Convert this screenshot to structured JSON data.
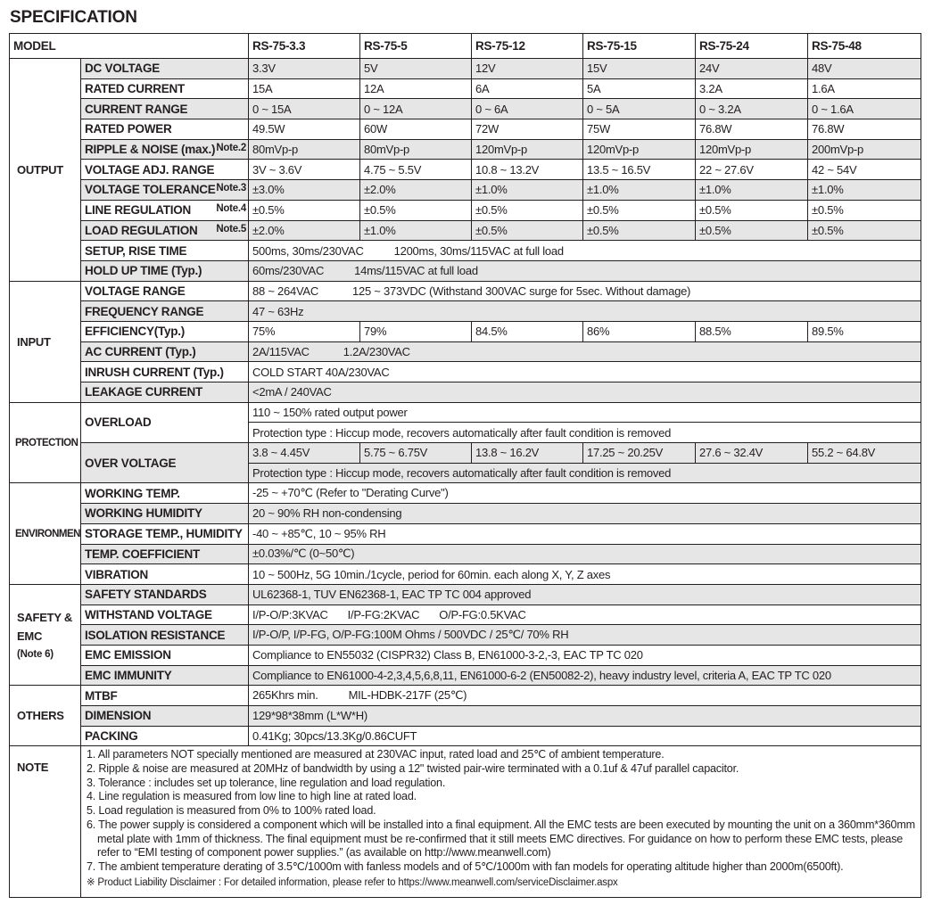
{
  "title": "SPECIFICATION",
  "model_label": "MODEL",
  "models": [
    "RS-75-3.3",
    "RS-75-5",
    "RS-75-12",
    "RS-75-15",
    "RS-75-24",
    "RS-75-48"
  ],
  "sections": [
    {
      "name": "OUTPUT",
      "rows": [
        {
          "label": "DC VOLTAGE",
          "values": [
            "3.3V",
            "5V",
            "12V",
            "15V",
            "24V",
            "48V"
          ]
        },
        {
          "label": "RATED CURRENT",
          "values": [
            "15A",
            "12A",
            "6A",
            "5A",
            "3.2A",
            "1.6A"
          ]
        },
        {
          "label": "CURRENT RANGE",
          "values": [
            "0 ~ 15A",
            "0 ~ 12A",
            "0 ~ 6A",
            "0 ~ 5A",
            "0 ~ 3.2A",
            "0 ~ 1.6A"
          ]
        },
        {
          "label": "RATED POWER",
          "values": [
            "49.5W",
            "60W",
            "72W",
            "75W",
            "76.8W",
            "76.8W"
          ]
        },
        {
          "label": "RIPPLE & NOISE (max.)",
          "note": "Note.2",
          "values": [
            "80mVp-p",
            "80mVp-p",
            "120mVp-p",
            "120mVp-p",
            "120mVp-p",
            "200mVp-p"
          ]
        },
        {
          "label": "VOLTAGE ADJ. RANGE",
          "values": [
            "3V ~ 3.6V",
            "4.75 ~ 5.5V",
            "10.8 ~ 13.2V",
            "13.5 ~ 16.5V",
            "22 ~ 27.6V",
            "42 ~ 54V"
          ]
        },
        {
          "label": "VOLTAGE TOLERANCE",
          "note": "Note.3",
          "values": [
            "±3.0%",
            "±2.0%",
            "±1.0%",
            "±1.0%",
            "±1.0%",
            "±1.0%"
          ]
        },
        {
          "label": "LINE REGULATION",
          "note": "Note.4",
          "values": [
            "±0.5%",
            "±0.5%",
            "±0.5%",
            "±0.5%",
            "±0.5%",
            "±0.5%"
          ]
        },
        {
          "label": "LOAD REGULATION",
          "note": "Note.5",
          "values": [
            "±2.0%",
            "±1.0%",
            "±0.5%",
            "±0.5%",
            "±0.5%",
            "±0.5%"
          ]
        },
        {
          "label": "SETUP, RISE TIME",
          "parts": [
            "500ms, 30ms/230VAC",
            "1200ms, 30ms/115VAC at full load"
          ]
        },
        {
          "label": "HOLD UP TIME (Typ.)",
          "parts": [
            "60ms/230VAC",
            "14ms/115VAC at full load"
          ]
        }
      ]
    },
    {
      "name": "INPUT",
      "rows": [
        {
          "label": "VOLTAGE RANGE",
          "parts": [
            "88 ~ 264VAC",
            "125 ~ 373VDC (Withstand 300VAC surge for 5sec. Without damage)"
          ]
        },
        {
          "label": "FREQUENCY RANGE",
          "parts": [
            "47 ~ 63Hz"
          ]
        },
        {
          "label": "EFFICIENCY(Typ.)",
          "values": [
            "75%",
            "79%",
            "84.5%",
            "86%",
            "88.5%",
            "89.5%"
          ]
        },
        {
          "label": "AC CURRENT (Typ.)",
          "parts": [
            "2A/115VAC",
            "1.2A/230VAC"
          ]
        },
        {
          "label": "INRUSH CURRENT (Typ.)",
          "parts": [
            "COLD START 40A/230VAC"
          ]
        },
        {
          "label": "LEAKAGE CURRENT",
          "parts": [
            "<2mA / 240VAC"
          ]
        }
      ]
    },
    {
      "name": "PROTECTION",
      "rows": [
        {
          "label": "OVERLOAD",
          "sub": [
            {
              "parts": [
                "110 ~ 150% rated output power"
              ]
            },
            {
              "parts": [
                "Protection type : Hiccup mode, recovers automatically after fault condition is removed"
              ]
            }
          ]
        },
        {
          "label": "OVER VOLTAGE",
          "sub": [
            {
              "values": [
                "3.8 ~ 4.45V",
                "5.75 ~ 6.75V",
                "13.8 ~ 16.2V",
                "17.25 ~ 20.25V",
                "27.6 ~ 32.4V",
                "55.2 ~ 64.8V"
              ]
            },
            {
              "parts": [
                "Protection type : Hiccup mode, recovers automatically after fault condition is removed"
              ]
            }
          ]
        }
      ]
    },
    {
      "name": "ENVIRONMENT",
      "rows": [
        {
          "label": "WORKING TEMP.",
          "parts": [
            "-25 ~ +70℃ (Refer to \"Derating Curve\")"
          ]
        },
        {
          "label": "WORKING HUMIDITY",
          "parts": [
            "20 ~ 90% RH non-condensing"
          ]
        },
        {
          "label": "STORAGE TEMP., HUMIDITY",
          "parts": [
            "-40 ~ +85℃, 10 ~ 95% RH"
          ]
        },
        {
          "label": "TEMP. COEFFICIENT",
          "parts": [
            "±0.03%/℃ (0~50℃)"
          ]
        },
        {
          "label": "VIBRATION",
          "parts": [
            "10 ~ 500Hz, 5G 10min./1cycle, period for 60min. each along X, Y, Z axes"
          ]
        }
      ]
    },
    {
      "name": "SAFETY &",
      "name2": "EMC",
      "name3": "(Note 6)",
      "rows": [
        {
          "label": "SAFETY STANDARDS",
          "parts": [
            "UL62368-1, TUV EN62368-1, EAC TP TC 004 approved"
          ]
        },
        {
          "label": "WITHSTAND VOLTAGE",
          "parts": [
            "I/P-O/P:3KVAC",
            "I/P-FG:2KVAC",
            "O/P-FG:0.5KVAC"
          ]
        },
        {
          "label": "ISOLATION RESISTANCE",
          "parts": [
            "I/P-O/P, I/P-FG, O/P-FG:100M Ohms / 500VDC / 25℃/ 70% RH"
          ]
        },
        {
          "label": "EMC EMISSION",
          "parts": [
            "Compliance to EN55032 (CISPR32) Class B, EN61000-3-2,-3, EAC TP TC 020"
          ]
        },
        {
          "label": "EMC IMMUNITY",
          "parts": [
            "Compliance to EN61000-4-2,3,4,5,6,8,11, EN61000-6-2 (EN50082-2), heavy industry level, criteria A, EAC TP TC 020"
          ]
        }
      ]
    },
    {
      "name": "OTHERS",
      "rows": [
        {
          "label": "MTBF",
          "parts": [
            "265Khrs min.",
            "MIL-HDBK-217F (25℃)"
          ]
        },
        {
          "label": "DIMENSION",
          "parts": [
            "129*98*38mm (L*W*H)"
          ]
        },
        {
          "label": "PACKING",
          "parts": [
            "0.41Kg; 30pcs/13.3Kg/0.86CUFT"
          ]
        }
      ]
    }
  ],
  "note": {
    "label": "NOTE",
    "items": [
      "1. All parameters NOT specially mentioned are measured at 230VAC input, rated load and 25℃ of ambient temperature.",
      "2. Ripple & noise are measured at 20MHz of bandwidth by using a 12\" twisted pair-wire terminated with a 0.1uf & 47uf parallel capacitor.",
      "3. Tolerance : includes set up tolerance, line regulation and load regulation.",
      "4. Line regulation is measured from low line to high line at rated load.",
      "5. Load regulation is measured from 0% to 100% rated load.",
      "6. The power supply is considered a component which will be installed into a final equipment. All the EMC tests are been executed by mounting the unit on a 360mm*360mm metal plate with 1mm of thickness. The final equipment must be re-confirmed that it still meets EMC directives. For guidance on how to perform these EMC tests, please refer to “EMI testing of component power supplies.” (as available on http://www.meanwell.com)",
      "7. The ambient temperature derating of 3.5℃/1000m with fanless models and of 5℃/1000m with fan models for operating altitude higher than 2000m(6500ft)."
    ],
    "disclaimer": "※ Product Liability Disclaimer : For detailed information, please refer to https://www.meanwell.com/serviceDisclaimer.aspx"
  }
}
